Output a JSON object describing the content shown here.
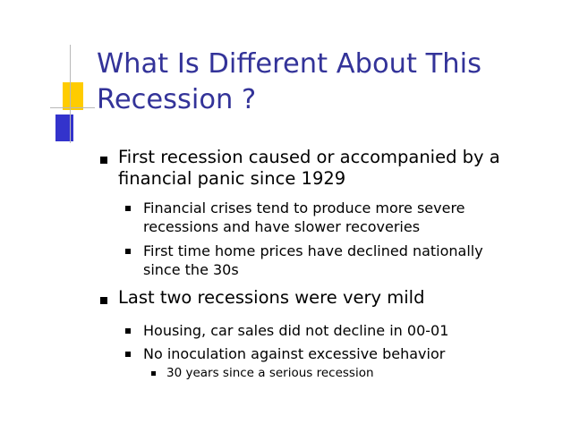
{
  "slide": {
    "title_lines": [
      "What Is Different About This",
      "Recession ?"
    ],
    "bullets": [
      {
        "level": 1,
        "lines": [
          "First recession caused or accompanied by a",
          "financial panic since 1929"
        ]
      },
      {
        "level": 2,
        "lines": [
          "Financial crises tend to produce more severe",
          "recessions and have slower recoveries"
        ]
      },
      {
        "level": 2,
        "lines": [
          "First time home prices have declined nationally",
          "since the 30s"
        ]
      },
      {
        "level": 1,
        "lines": [
          "Last two recessions were very mild"
        ]
      },
      {
        "level": 2,
        "lines": [
          "Housing, car sales did not decline in 00-01"
        ]
      },
      {
        "level": 2,
        "lines": [
          "No inoculation against excessive behavior"
        ]
      },
      {
        "level": 3,
        "lines": [
          "30 years since a serious recession"
        ]
      }
    ]
  },
  "colors": {
    "title": "#333399",
    "deco_yellow": "#FFCC00",
    "deco_blue": "#3333CC",
    "text": "#000000"
  }
}
